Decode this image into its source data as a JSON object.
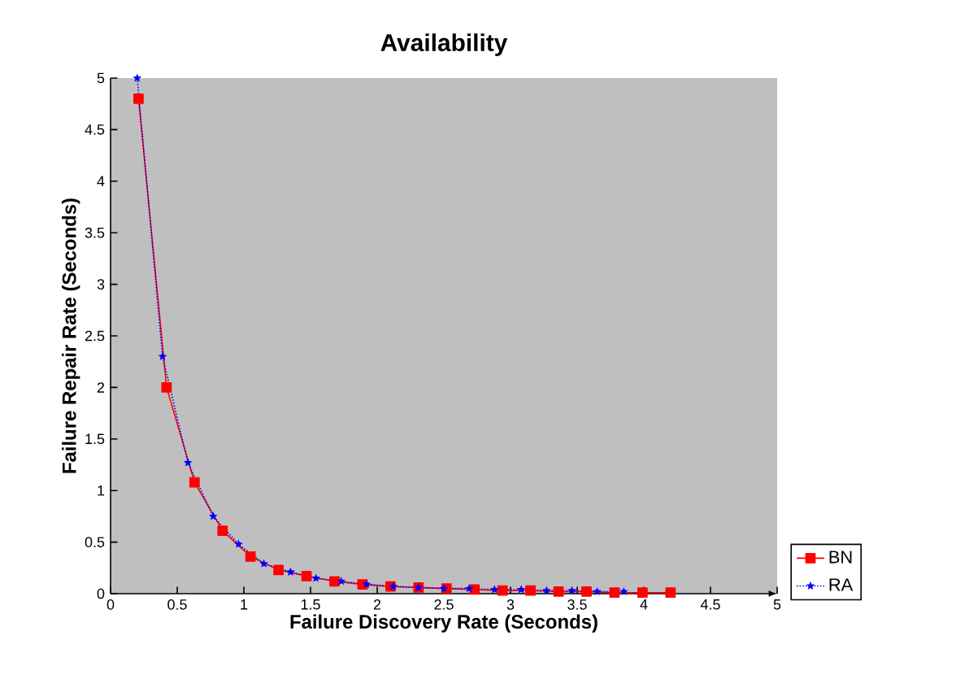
{
  "chart_data": {
    "type": "line",
    "title": "Availability",
    "xlabel": "Failure Discovery Rate (Seconds)",
    "ylabel": "Failure Repair Rate (Seconds)",
    "xlim": [
      0,
      5
    ],
    "ylim": [
      0,
      5
    ],
    "xticks": [
      0,
      0.5,
      1,
      1.5,
      2,
      2.5,
      3,
      3.5,
      4,
      4.5,
      5
    ],
    "yticks": [
      0,
      0.5,
      1,
      1.5,
      2,
      2.5,
      3,
      3.5,
      4,
      4.5,
      5
    ],
    "grid": false,
    "legend": "right",
    "series": [
      {
        "name": "BN",
        "color": "#ff0000",
        "marker": "square",
        "line_style": "solid",
        "x": [
          0.21,
          0.42,
          0.63,
          0.84,
          1.05,
          1.26,
          1.47,
          1.68,
          1.89,
          2.1,
          2.31,
          2.52,
          2.73,
          2.94,
          3.15,
          3.36,
          3.57,
          3.78,
          3.99,
          4.2
        ],
        "values": [
          4.8,
          2.0,
          1.08,
          0.61,
          0.36,
          0.23,
          0.17,
          0.12,
          0.09,
          0.07,
          0.06,
          0.05,
          0.04,
          0.03,
          0.03,
          0.02,
          0.02,
          0.01,
          0.01,
          0.01
        ]
      },
      {
        "name": "RA",
        "color": "#0000ff",
        "marker": "star",
        "line_style": "dotted",
        "x": [
          0.2,
          0.39,
          0.58,
          0.77,
          0.96,
          1.15,
          1.35,
          1.54,
          1.73,
          1.92,
          2.12,
          2.31,
          2.5,
          2.69,
          2.88,
          3.08,
          3.27,
          3.46,
          3.65,
          3.85
        ],
        "values": [
          5.0,
          2.3,
          1.27,
          0.75,
          0.48,
          0.29,
          0.21,
          0.15,
          0.12,
          0.09,
          0.07,
          0.06,
          0.05,
          0.05,
          0.04,
          0.04,
          0.03,
          0.03,
          0.02,
          0.02
        ]
      }
    ]
  }
}
